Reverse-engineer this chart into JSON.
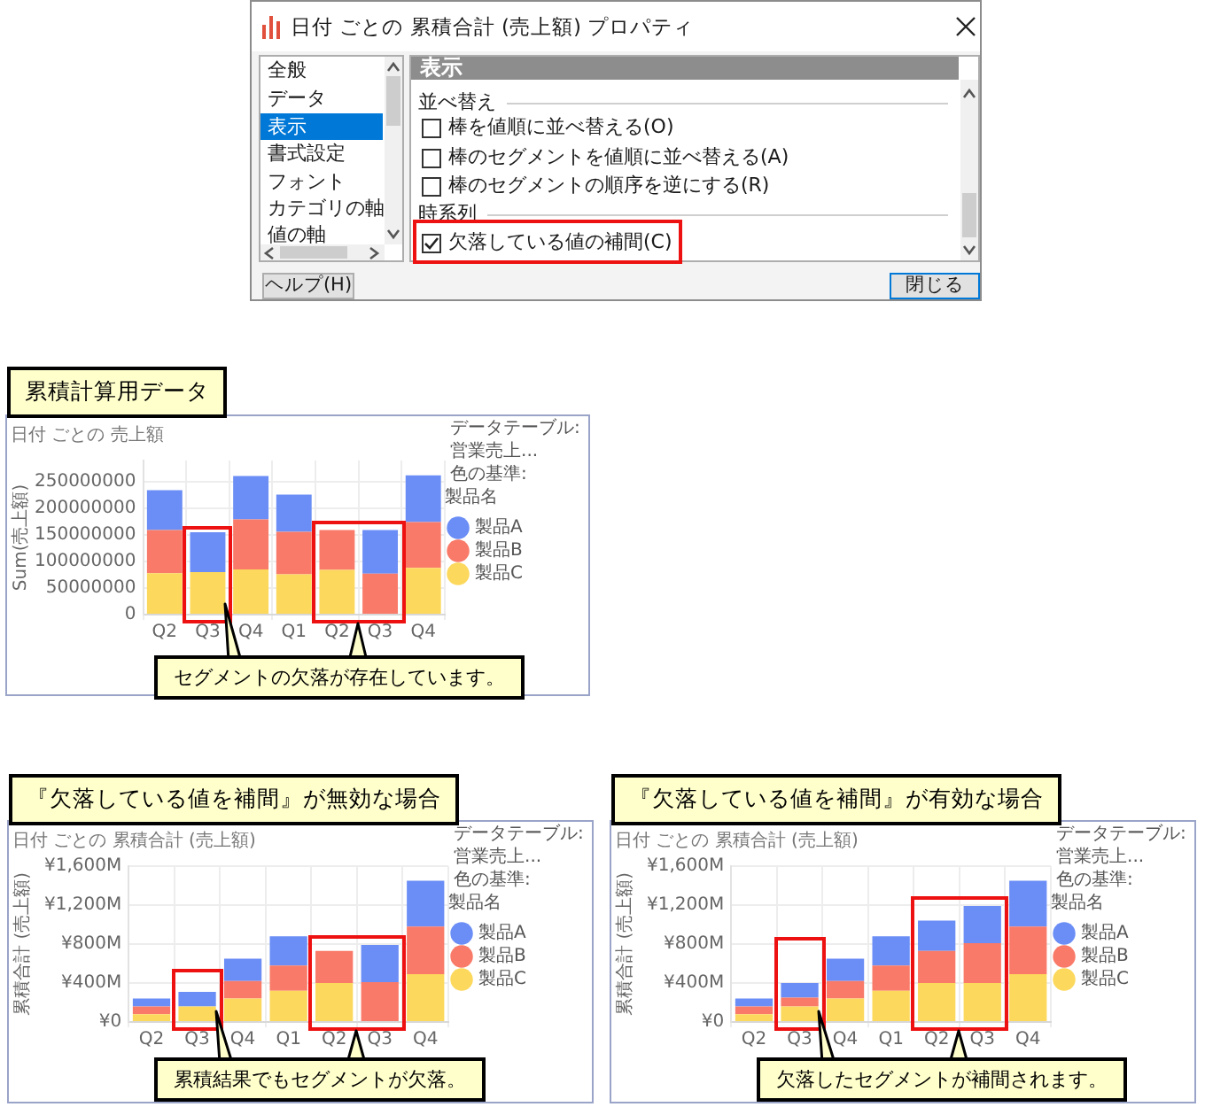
{
  "chart_data": [
    {
      "type": "other",
      "title": "日付 ごとの 累積合計 (売上額) プロパティ",
      "annotations": [
        "全般",
        "データ",
        "表示",
        "書式設定",
        "フォント",
        "カテゴリの軸",
        "値の軸",
        "表示",
        "並べ替え",
        "棒を値順に並べ替える(O)",
        "棒のセグメントを値順に並べ替える(A)",
        "棒のセグメントの順序を逆にする(R)",
        "時系列",
        "欠落している値の補間(C)",
        "ヘルプ(H)",
        "閉じる"
      ]
    },
    {
      "type": "bar",
      "stacked": true,
      "title": "累積計算用データ",
      "subtitle": "日付 ごとの 売上額",
      "ylabel": "Sum(売上額)",
      "categories": [
        "Q2",
        "Q3",
        "Q4",
        "Q1",
        "Q2",
        "Q3",
        "Q4"
      ],
      "series": [
        {
          "name": "製品C",
          "color": "#fcd85c",
          "values": [
            78000000,
            80000000,
            85000000,
            76000000,
            84000000,
            null,
            88000000
          ]
        },
        {
          "name": "製品B",
          "color": "#f97a68",
          "values": [
            81000000,
            null,
            94000000,
            80000000,
            75000000,
            77000000,
            86000000
          ]
        },
        {
          "name": "製品A",
          "color": "#6a8df6",
          "values": [
            75000000,
            75000000,
            82000000,
            70000000,
            null,
            82000000,
            88000000
          ]
        }
      ],
      "ylim": [
        0,
        290000000
      ],
      "yticks": [
        0,
        50000000,
        100000000,
        150000000,
        200000000,
        250000000
      ],
      "grid": true,
      "legend": "right",
      "legend_title": "製品名",
      "annotations": [
        "データテーブル:",
        "営業売上...",
        "色の基準:",
        "セグメントの欠落が存在しています。"
      ]
    },
    {
      "type": "bar",
      "stacked": true,
      "title": "『欠落している値を補間』が無効な場合",
      "subtitle": "日付 ごとの 累積合計 (売上額)",
      "ylabel": "累積合計 (売上額)",
      "categories": [
        "Q2",
        "Q3",
        "Q4",
        "Q1",
        "Q2",
        "Q3",
        "Q4"
      ],
      "series": [
        {
          "name": "製品C",
          "color": "#fcd85c",
          "values": [
            80,
            160,
            240,
            320,
            400,
            null,
            490
          ]
        },
        {
          "name": "製品B",
          "color": "#f97a68",
          "values": [
            80,
            null,
            180,
            260,
            330,
            410,
            490
          ]
        },
        {
          "name": "製品A",
          "color": "#6a8df6",
          "values": [
            80,
            150,
            230,
            300,
            null,
            380,
            470
          ]
        }
      ],
      "ylim": [
        0,
        1600
      ],
      "yticks": [
        {
          "value": 0,
          "label": "¥0"
        },
        {
          "value": 400,
          "label": "¥400M"
        },
        {
          "value": 800,
          "label": "¥800M"
        },
        {
          "value": 1200,
          "label": "¥1,200M"
        },
        {
          "value": 1600,
          "label": "¥1,600M"
        }
      ],
      "grid": true,
      "legend": "right",
      "legend_title": "製品名",
      "annotations": [
        "データテーブル:",
        "営業売上...",
        "色の基準:",
        "累積結果でもセグメントが欠落。"
      ]
    },
    {
      "type": "bar",
      "stacked": true,
      "title": "『欠落している値を補間』が有効な場合",
      "subtitle": "日付 ごとの 累積合計 (売上額)",
      "ylabel": "累積合計 (売上額)",
      "categories": [
        "Q2",
        "Q3",
        "Q4",
        "Q1",
        "Q2",
        "Q3",
        "Q4"
      ],
      "series": [
        {
          "name": "製品C",
          "color": "#fcd85c",
          "values": [
            80,
            160,
            240,
            320,
            400,
            400,
            490
          ]
        },
        {
          "name": "製品B",
          "color": "#f97a68",
          "values": [
            80,
            90,
            180,
            260,
            330,
            410,
            490
          ]
        },
        {
          "name": "製品A",
          "color": "#6a8df6",
          "values": [
            80,
            150,
            230,
            300,
            310,
            380,
            470
          ]
        }
      ],
      "ylim": [
        0,
        1600
      ],
      "yticks": [
        {
          "value": 0,
          "label": "¥0"
        },
        {
          "value": 400,
          "label": "¥400M"
        },
        {
          "value": 800,
          "label": "¥800M"
        },
        {
          "value": 1200,
          "label": "¥1,200M"
        },
        {
          "value": 1600,
          "label": "¥1,600M"
        }
      ],
      "grid": true,
      "legend": "right",
      "legend_title": "製品名",
      "annotations": [
        "データテーブル:",
        "営業売上...",
        "色の基準:",
        "欠落したセグメントが補間されます。"
      ]
    }
  ]
}
